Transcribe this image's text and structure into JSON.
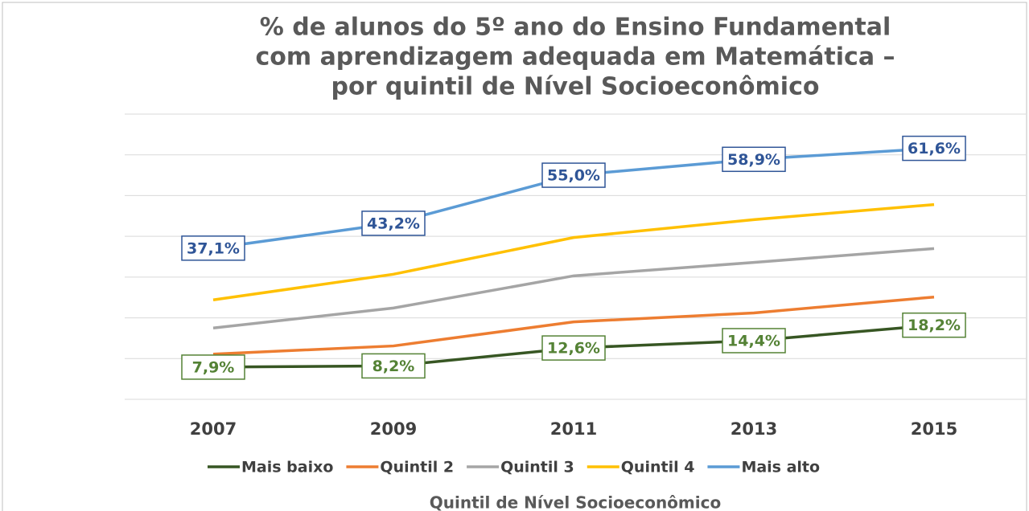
{
  "chart_data": {
    "type": "line",
    "title": [
      "% de alunos do 5º ano do Ensino Fundamental",
      "com aprendizagem adequada em Matemática –",
      "por quintil de Nível Socioeconômico"
    ],
    "x_label": "Quintil de Nível Socioeconômico",
    "categories": [
      "2007",
      "2009",
      "2011",
      "2013",
      "2015"
    ],
    "ylim": [
      0,
      70
    ],
    "yticks": [
      0,
      10,
      20,
      30,
      40,
      50,
      60,
      70
    ],
    "grid": true,
    "legend": "bottom",
    "series": [
      {
        "name": "Mais baixo",
        "color": "#375623",
        "label_color": "#548235",
        "values": [
          7.9,
          8.2,
          12.6,
          14.4,
          18.2
        ],
        "value_labels": [
          "7,9%",
          "8,2%",
          "12,6%",
          "14,4%",
          "18,2%"
        ]
      },
      {
        "name": "Quintil 2",
        "color": "#ed7d31",
        "values": [
          11.1,
          13.1,
          19.0,
          21.2,
          25.1
        ]
      },
      {
        "name": "Quintil 3",
        "color": "#a5a5a5",
        "values": [
          17.5,
          22.4,
          30.3,
          33.6,
          37.0
        ]
      },
      {
        "name": "Quintil 4",
        "color": "#ffc000",
        "values": [
          24.4,
          30.7,
          39.7,
          44.1,
          47.8
        ]
      },
      {
        "name": "Mais alto",
        "color": "#5b9bd5",
        "label_color": "#2f5597",
        "values": [
          37.1,
          43.2,
          55.0,
          58.9,
          61.6
        ],
        "value_labels": [
          "37,1%",
          "43,2%",
          "55,0%",
          "58,9%",
          "61,6%"
        ]
      }
    ]
  }
}
